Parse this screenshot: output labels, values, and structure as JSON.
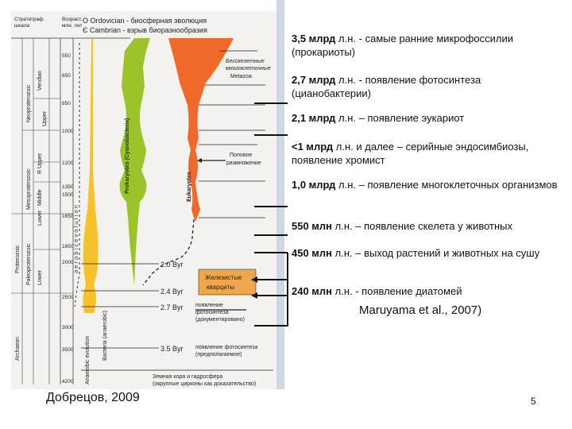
{
  "slide": {
    "events": [
      {
        "bold": "3,5 млрд",
        "text": " л.н. - самые ранние микрофоссилии (прокариоты)"
      },
      {
        "bold": "2,7 млрд",
        "text": " л.н. - появление фотосинтеза (цианобактерии)"
      },
      {
        "bold": "2,1 млрд",
        "text": " л.н. – появление эукариот"
      },
      {
        "bold": "<1 млрд",
        "text": " л.н. и далее – серийные эндосимбиозы, появление хромист"
      },
      {
        "bold": "1,0 млрд",
        "text": " л.н. – появление многоклеточных организмов"
      },
      {
        "bold": " 550 млн",
        "text": " л.н. – появление скелета у животных"
      },
      {
        "bold": "450 млн",
        "text": " л.н. – выход растений и животных на сушу"
      },
      {
        "bold": "240 млн",
        "text": " л.н. - появление диатомей"
      }
    ],
    "reference": "Maruyama et al., 2007)",
    "author": "Добрецов, 2009",
    "page_number": "5"
  },
  "figure": {
    "header": {
      "col1_line1": "Стратиграф.",
      "col1_line2": "шкала",
      "col2_line1": "Возраст,",
      "col2_line2": "млн. лет",
      "ordovician": "O  Ordovician - биосферная эволюция",
      "cambrian": "Є  Cambrian - взрыв биоразнообразия"
    },
    "ages": [
      "550",
      "650",
      "850",
      "1000",
      "1200",
      "1350",
      "1500",
      "1650",
      "1850",
      "2000",
      "2500",
      "3000",
      "3500",
      "4200"
    ],
    "eras": {
      "neoproterozoic": "Neoproterozoic",
      "mesoproterozoic": "Mesoproterozoic",
      "paleoproterozoic": "Paleoproterozoic",
      "proterozoic": "Proterozoic",
      "archaean": "Archaean",
      "vendian": "Vendian",
      "upper": "Upper",
      "middle": "Middle",
      "lower": "Lower",
      "r_upper": "R  Upper",
      "paleo_lower": "Lower"
    },
    "vertical_labels": {
      "prokaryotes": "Prokaryotes (Cyanobacteria)",
      "eukaryotes": "Eukaryotes",
      "aerobic_evolution": "a e r o b i c   e v o l u t i o n",
      "bacteria": "Bacteria (anaerobic)",
      "anaerobic_evolution": "Anaerobic evolution"
    },
    "annotations": {
      "no_skeleton_1": "Бесскелетные",
      "no_skeleton_2": "многоклеточные",
      "metazoa": "Metazoa",
      "sexual_1": "Половое",
      "sexual_2": "размножение",
      "iron_1": "Железистые",
      "iron_2": "кварциты",
      "photo_1": "появление",
      "photo_2": "фотосинтеза",
      "photo_3": "(документировано)",
      "photo_b1": "появление фотосинтеза",
      "photo_b2": "(предполагаемое)",
      "crust_1": "Земная кора и гидросфера",
      "crust_2": "(окруплые цирконы как доказательство)"
    },
    "byr": [
      "2.0 Byr",
      "2.4 Byr",
      "2.7 Byr",
      "3.5 Byr"
    ],
    "colors": {
      "bacteria": "#f6c22c",
      "prokaryotes": "#9cc42a",
      "metazoa": "#ef6a2a",
      "iron_box": "#f0a64a",
      "panel": "#f3f2ee"
    }
  }
}
